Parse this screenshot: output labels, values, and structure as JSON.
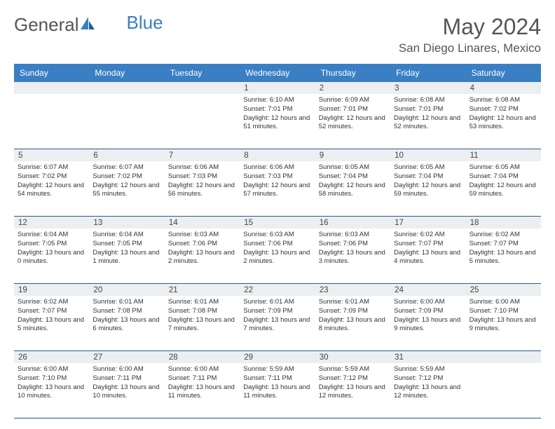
{
  "logo": {
    "text1": "General",
    "text2": "Blue"
  },
  "title": "May 2024",
  "location": "San Diego Linares, Mexico",
  "colors": {
    "header_bg": "#3a7fc4",
    "header_text": "#ffffff",
    "daynum_bg": "#eceff1",
    "border": "#2a5a8a",
    "text": "#333333",
    "title_text": "#555555"
  },
  "dayNames": [
    "Sunday",
    "Monday",
    "Tuesday",
    "Wednesday",
    "Thursday",
    "Friday",
    "Saturday"
  ],
  "weeks": [
    [
      {
        "n": "",
        "sr": "",
        "ss": "",
        "dl": ""
      },
      {
        "n": "",
        "sr": "",
        "ss": "",
        "dl": ""
      },
      {
        "n": "",
        "sr": "",
        "ss": "",
        "dl": ""
      },
      {
        "n": "1",
        "sr": "Sunrise: 6:10 AM",
        "ss": "Sunset: 7:01 PM",
        "dl": "Daylight: 12 hours and 51 minutes."
      },
      {
        "n": "2",
        "sr": "Sunrise: 6:09 AM",
        "ss": "Sunset: 7:01 PM",
        "dl": "Daylight: 12 hours and 52 minutes."
      },
      {
        "n": "3",
        "sr": "Sunrise: 6:08 AM",
        "ss": "Sunset: 7:01 PM",
        "dl": "Daylight: 12 hours and 52 minutes."
      },
      {
        "n": "4",
        "sr": "Sunrise: 6:08 AM",
        "ss": "Sunset: 7:02 PM",
        "dl": "Daylight: 12 hours and 53 minutes."
      }
    ],
    [
      {
        "n": "5",
        "sr": "Sunrise: 6:07 AM",
        "ss": "Sunset: 7:02 PM",
        "dl": "Daylight: 12 hours and 54 minutes."
      },
      {
        "n": "6",
        "sr": "Sunrise: 6:07 AM",
        "ss": "Sunset: 7:02 PM",
        "dl": "Daylight: 12 hours and 55 minutes."
      },
      {
        "n": "7",
        "sr": "Sunrise: 6:06 AM",
        "ss": "Sunset: 7:03 PM",
        "dl": "Daylight: 12 hours and 56 minutes."
      },
      {
        "n": "8",
        "sr": "Sunrise: 6:06 AM",
        "ss": "Sunset: 7:03 PM",
        "dl": "Daylight: 12 hours and 57 minutes."
      },
      {
        "n": "9",
        "sr": "Sunrise: 6:05 AM",
        "ss": "Sunset: 7:04 PM",
        "dl": "Daylight: 12 hours and 58 minutes."
      },
      {
        "n": "10",
        "sr": "Sunrise: 6:05 AM",
        "ss": "Sunset: 7:04 PM",
        "dl": "Daylight: 12 hours and 59 minutes."
      },
      {
        "n": "11",
        "sr": "Sunrise: 6:05 AM",
        "ss": "Sunset: 7:04 PM",
        "dl": "Daylight: 12 hours and 59 minutes."
      }
    ],
    [
      {
        "n": "12",
        "sr": "Sunrise: 6:04 AM",
        "ss": "Sunset: 7:05 PM",
        "dl": "Daylight: 13 hours and 0 minutes."
      },
      {
        "n": "13",
        "sr": "Sunrise: 6:04 AM",
        "ss": "Sunset: 7:05 PM",
        "dl": "Daylight: 13 hours and 1 minute."
      },
      {
        "n": "14",
        "sr": "Sunrise: 6:03 AM",
        "ss": "Sunset: 7:06 PM",
        "dl": "Daylight: 13 hours and 2 minutes."
      },
      {
        "n": "15",
        "sr": "Sunrise: 6:03 AM",
        "ss": "Sunset: 7:06 PM",
        "dl": "Daylight: 13 hours and 2 minutes."
      },
      {
        "n": "16",
        "sr": "Sunrise: 6:03 AM",
        "ss": "Sunset: 7:06 PM",
        "dl": "Daylight: 13 hours and 3 minutes."
      },
      {
        "n": "17",
        "sr": "Sunrise: 6:02 AM",
        "ss": "Sunset: 7:07 PM",
        "dl": "Daylight: 13 hours and 4 minutes."
      },
      {
        "n": "18",
        "sr": "Sunrise: 6:02 AM",
        "ss": "Sunset: 7:07 PM",
        "dl": "Daylight: 13 hours and 5 minutes."
      }
    ],
    [
      {
        "n": "19",
        "sr": "Sunrise: 6:02 AM",
        "ss": "Sunset: 7:07 PM",
        "dl": "Daylight: 13 hours and 5 minutes."
      },
      {
        "n": "20",
        "sr": "Sunrise: 6:01 AM",
        "ss": "Sunset: 7:08 PM",
        "dl": "Daylight: 13 hours and 6 minutes."
      },
      {
        "n": "21",
        "sr": "Sunrise: 6:01 AM",
        "ss": "Sunset: 7:08 PM",
        "dl": "Daylight: 13 hours and 7 minutes."
      },
      {
        "n": "22",
        "sr": "Sunrise: 6:01 AM",
        "ss": "Sunset: 7:09 PM",
        "dl": "Daylight: 13 hours and 7 minutes."
      },
      {
        "n": "23",
        "sr": "Sunrise: 6:01 AM",
        "ss": "Sunset: 7:09 PM",
        "dl": "Daylight: 13 hours and 8 minutes."
      },
      {
        "n": "24",
        "sr": "Sunrise: 6:00 AM",
        "ss": "Sunset: 7:09 PM",
        "dl": "Daylight: 13 hours and 9 minutes."
      },
      {
        "n": "25",
        "sr": "Sunrise: 6:00 AM",
        "ss": "Sunset: 7:10 PM",
        "dl": "Daylight: 13 hours and 9 minutes."
      }
    ],
    [
      {
        "n": "26",
        "sr": "Sunrise: 6:00 AM",
        "ss": "Sunset: 7:10 PM",
        "dl": "Daylight: 13 hours and 10 minutes."
      },
      {
        "n": "27",
        "sr": "Sunrise: 6:00 AM",
        "ss": "Sunset: 7:11 PM",
        "dl": "Daylight: 13 hours and 10 minutes."
      },
      {
        "n": "28",
        "sr": "Sunrise: 6:00 AM",
        "ss": "Sunset: 7:11 PM",
        "dl": "Daylight: 13 hours and 11 minutes."
      },
      {
        "n": "29",
        "sr": "Sunrise: 5:59 AM",
        "ss": "Sunset: 7:11 PM",
        "dl": "Daylight: 13 hours and 11 minutes."
      },
      {
        "n": "30",
        "sr": "Sunrise: 5:59 AM",
        "ss": "Sunset: 7:12 PM",
        "dl": "Daylight: 13 hours and 12 minutes."
      },
      {
        "n": "31",
        "sr": "Sunrise: 5:59 AM",
        "ss": "Sunset: 7:12 PM",
        "dl": "Daylight: 13 hours and 12 minutes."
      },
      {
        "n": "",
        "sr": "",
        "ss": "",
        "dl": ""
      }
    ]
  ]
}
